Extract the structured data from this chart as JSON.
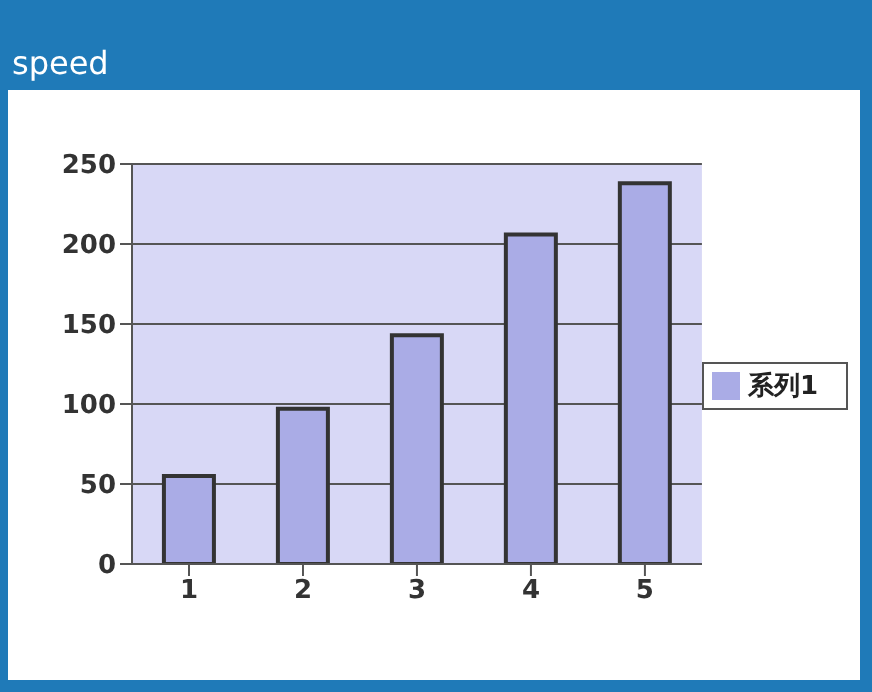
{
  "chart_data": {
    "type": "bar",
    "title": "speed",
    "categories": [
      "1",
      "2",
      "3",
      "4",
      "5"
    ],
    "series": [
      {
        "name": "系列1",
        "color": "#aaace6",
        "values": [
          55,
          97,
          143,
          206,
          238
        ]
      }
    ],
    "ylim": [
      0,
      250
    ],
    "yticks": [
      0,
      50,
      100,
      150,
      200,
      250
    ],
    "grid": "y",
    "legend": "right"
  }
}
